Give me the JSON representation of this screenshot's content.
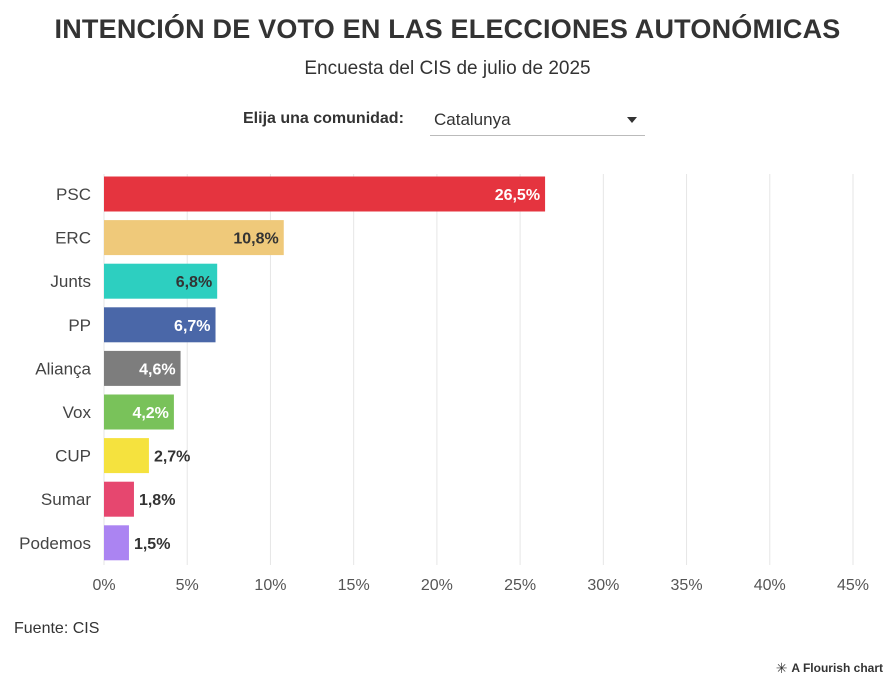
{
  "header": {
    "title": "INTENCIÓN DE VOTO EN LAS ELECCIONES AUTONÓMICAS",
    "subtitle": "Encuesta del CIS de julio de 2025"
  },
  "controls": {
    "label": "Elija una comunidad:",
    "selected": "Catalunya"
  },
  "footer": {
    "source": "Fuente: CIS",
    "credit": "A Flourish chart"
  },
  "colors": {
    "gridline": "#e6e6e6",
    "axis_text": "#555555",
    "label_dark": "#333333",
    "label_light": "#ffffff"
  },
  "chart_data": {
    "type": "bar",
    "orientation": "horizontal",
    "title": "INTENCIÓN DE VOTO EN LAS ELECCIONES AUTONÓMICAS",
    "subtitle": "Encuesta del CIS de julio de 2025",
    "categories": [
      "PSC",
      "ERC",
      "Junts",
      "PP",
      "Aliança",
      "Vox",
      "CUP",
      "Sumar",
      "Podemos"
    ],
    "values": [
      26.5,
      10.8,
      6.8,
      6.7,
      4.6,
      4.2,
      2.7,
      1.8,
      1.5
    ],
    "value_labels": [
      "26,5%",
      "10,8%",
      "6,8%",
      "6,7%",
      "4,6%",
      "4,2%",
      "2,7%",
      "1,8%",
      "1,5%"
    ],
    "label_position": [
      "inside",
      "inside",
      "inside",
      "inside",
      "inside",
      "inside",
      "outside",
      "outside",
      "outside"
    ],
    "label_color": [
      "light",
      "dark",
      "dark",
      "light",
      "light",
      "light",
      "dark",
      "dark",
      "dark"
    ],
    "bar_colors": [
      "#e5343f",
      "#efc97a",
      "#2dcfc0",
      "#4a67a8",
      "#7d7d7d",
      "#79c25a",
      "#f5e23e",
      "#e6476f",
      "#ab84f2"
    ],
    "xlim": [
      0,
      45
    ],
    "xticks": [
      0,
      5,
      10,
      15,
      20,
      25,
      30,
      35,
      40,
      45
    ],
    "xtick_labels": [
      "0%",
      "5%",
      "10%",
      "15%",
      "20%",
      "25%",
      "30%",
      "35%",
      "40%",
      "45%"
    ],
    "grid": true,
    "xlabel": "",
    "ylabel": ""
  }
}
